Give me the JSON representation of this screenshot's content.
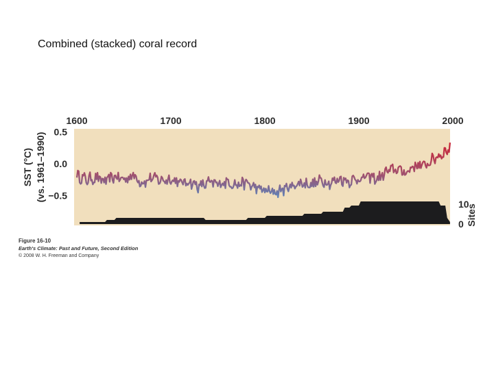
{
  "slide": {
    "title": "Combined (stacked) coral record"
  },
  "caption": {
    "figure_number": "Figure 16-10",
    "book": "Earth's Climate: Past and Future, Second Edition",
    "copyright": "© 2008 W. H. Freeman and Company"
  },
  "colors": {
    "panel": "#f1dfbd",
    "warm": "#c8283a",
    "cool": "#5a86bd",
    "sites": "#1c1c1e"
  },
  "chart_data": {
    "type": "line",
    "title": "",
    "xlabel": "",
    "ylabel": "SST (°C) (vs. 1961–1990)",
    "ylabel_lines": [
      "SST (°C)",
      "(vs. 1961–1990)"
    ],
    "xlim": [
      1600,
      2000
    ],
    "ylim": [
      -0.95,
      0.55
    ],
    "x_ticks": [
      "1600",
      "1700",
      "1800",
      "1900",
      "2000"
    ],
    "y_ticks": [
      "0.5",
      "0.0",
      "−0.5"
    ],
    "series": [
      {
        "x": [
          1600,
          1610,
          1620,
          1630,
          1640,
          1650,
          1660,
          1670,
          1680,
          1690,
          1700,
          1710,
          1720,
          1730,
          1740,
          1750,
          1760,
          1770,
          1780,
          1790,
          1800,
          1810,
          1820,
          1830,
          1840,
          1850,
          1860,
          1870,
          1880,
          1890,
          1900,
          1910,
          1920,
          1930,
          1940,
          1950,
          1960,
          1970,
          1980,
          1990,
          1997
        ],
        "values": [
          -0.18,
          -0.25,
          -0.22,
          -0.28,
          -0.2,
          -0.25,
          -0.18,
          -0.3,
          -0.22,
          -0.26,
          -0.24,
          -0.3,
          -0.28,
          -0.36,
          -0.3,
          -0.32,
          -0.28,
          -0.33,
          -0.3,
          -0.38,
          -0.42,
          -0.45,
          -0.4,
          -0.34,
          -0.3,
          -0.33,
          -0.26,
          -0.3,
          -0.24,
          -0.27,
          -0.24,
          -0.2,
          -0.24,
          -0.12,
          -0.08,
          -0.14,
          -0.02,
          -0.03,
          0.08,
          0.17,
          0.25
        ]
      }
    ],
    "sites_axis": {
      "label": "Sites",
      "ticks": [
        "10",
        "0"
      ],
      "max": 14
    },
    "sites": {
      "x": [
        1603,
        1630,
        1632,
        1640,
        1642,
        1687,
        1690,
        1735,
        1737,
        1780,
        1782,
        1800,
        1802,
        1840,
        1842,
        1860,
        1862,
        1883,
        1885,
        1890,
        1892,
        1900,
        1902,
        1950,
        1952,
        1985,
        1987,
        1992,
        1994,
        1997
      ],
      "values": [
        1,
        1,
        2,
        2,
        3,
        3,
        3,
        3,
        2,
        2,
        3,
        3,
        4,
        4,
        5,
        5,
        6,
        6,
        8,
        8,
        9,
        9,
        11,
        11,
        11,
        11,
        9,
        9,
        3,
        1
      ]
    }
  }
}
